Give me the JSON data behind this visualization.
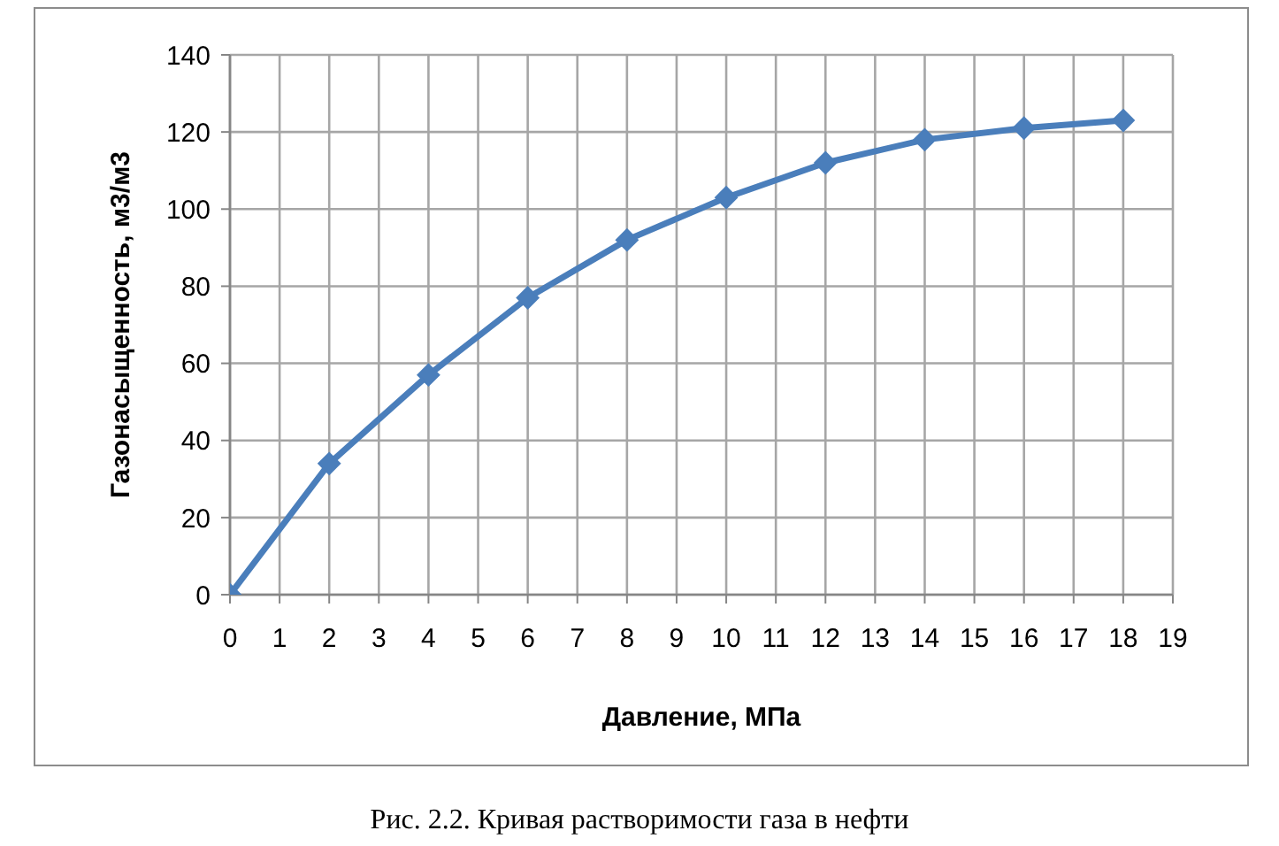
{
  "chart_data": {
    "type": "line",
    "xlabel": "Давление, МПа",
    "ylabel": "Газонасыщенность, м3/м3",
    "x": [
      0,
      2,
      4,
      6,
      8,
      10,
      12,
      14,
      16,
      18
    ],
    "values": [
      0,
      34,
      57,
      77,
      92,
      103,
      112,
      118,
      121,
      123
    ],
    "color": "#4a7ebb",
    "xlim": [
      0,
      19
    ],
    "xticks": [
      0,
      1,
      2,
      3,
      4,
      5,
      6,
      7,
      8,
      9,
      10,
      11,
      12,
      13,
      14,
      15,
      16,
      17,
      18,
      19
    ],
    "ylim": [
      0,
      140
    ],
    "yticks": [
      0,
      20,
      40,
      60,
      80,
      100,
      120,
      140
    ],
    "grid": true,
    "marker": "diamond",
    "line_style": "solid",
    "annotations": [
      "Рис. 2.2. Кривая растворимости газа в нефти"
    ]
  }
}
